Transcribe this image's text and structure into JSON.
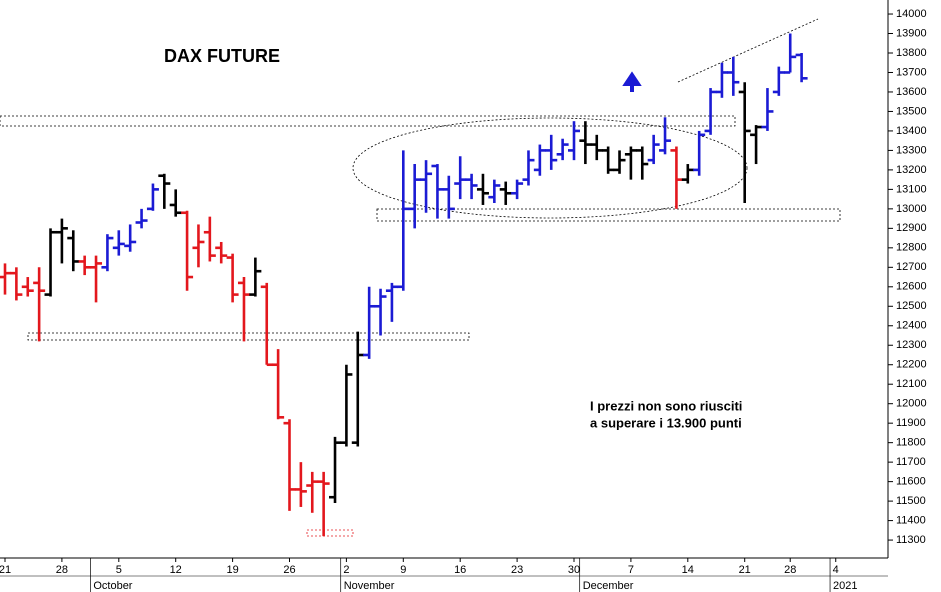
{
  "chart_data": {
    "type": "ohlc",
    "title": "DAX FUTURE",
    "annotation": [
      "I prezzi non sono riusciti",
      "a superare i 13.900 punti"
    ],
    "categories": [
      "21",
      null,
      null,
      null,
      null,
      "28",
      null,
      null,
      null,
      null,
      "5",
      null,
      null,
      null,
      null,
      "12",
      null,
      null,
      null,
      null,
      "19",
      null,
      null,
      null,
      null,
      "26",
      null,
      null,
      null,
      null,
      "2",
      null,
      null,
      null,
      null,
      "9",
      null,
      null,
      null,
      null,
      "16",
      null,
      null,
      null,
      null,
      "23",
      null,
      null,
      null,
      null,
      "30",
      null,
      null,
      null,
      null,
      "7",
      null,
      null,
      null,
      null,
      "14",
      null,
      null,
      null,
      null,
      "21",
      null,
      null,
      null,
      "28",
      null,
      null,
      null,
      "4"
    ],
    "months": [
      {
        "label": "October",
        "start": 8
      },
      {
        "label": "November",
        "start": 30
      },
      {
        "label": "December",
        "start": 51
      },
      {
        "label": "2021",
        "start": 73
      }
    ],
    "open": [
      12650,
      12670,
      12600,
      12620,
      12560,
      12880,
      12850,
      12730,
      12700,
      12700,
      12800,
      12810,
      12930,
      13000,
      13170,
      13020,
      12980,
      12800,
      12880,
      12800,
      12750,
      12620,
      12560,
      12600,
      12200,
      11900,
      11560,
      11580,
      11600,
      11520,
      11800,
      11800,
      12250,
      12500,
      12580,
      12600,
      13000,
      13150,
      13220,
      13100,
      13130,
      13150,
      13100,
      13060,
      13100,
      13080,
      13150,
      13200,
      13300,
      13280,
      13300,
      13350,
      13330,
      13300,
      13200,
      13280,
      13300,
      13250,
      13300,
      13300,
      13150,
      13200,
      13400,
      13600,
      13700,
      13600,
      13380,
      13420,
      13600,
      13700,
      13790,
      null,
      null,
      null
    ],
    "high": [
      12720,
      12700,
      12650,
      12700,
      12900,
      12950,
      12890,
      12760,
      12760,
      12870,
      12890,
      12920,
      13000,
      13130,
      13180,
      13100,
      12990,
      12920,
      12960,
      12830,
      12770,
      12650,
      12750,
      12620,
      12280,
      11920,
      11700,
      11650,
      11650,
      11830,
      12200,
      12370,
      12600,
      12590,
      12620,
      13300,
      13230,
      13250,
      13230,
      13170,
      13270,
      13180,
      13180,
      13150,
      13140,
      13150,
      13300,
      13330,
      13380,
      13360,
      13450,
      13450,
      13380,
      13320,
      13300,
      13320,
      13320,
      13380,
      13470,
      13320,
      13230,
      13400,
      13620,
      13750,
      13780,
      13650,
      13430,
      13620,
      13730,
      13900,
      13800,
      null,
      null,
      null
    ],
    "low": [
      12560,
      12530,
      12550,
      12320,
      12550,
      12720,
      12680,
      12660,
      12520,
      12680,
      12760,
      12780,
      12900,
      12990,
      13000,
      12960,
      12580,
      12700,
      12730,
      12720,
      12520,
      12320,
      12550,
      12200,
      11920,
      11450,
      11470,
      11440,
      11320,
      11490,
      11780,
      11780,
      12230,
      12350,
      12420,
      12580,
      12900,
      12980,
      12950,
      12950,
      13050,
      13050,
      13020,
      13030,
      13020,
      13050,
      13120,
      13170,
      13200,
      13250,
      13250,
      13230,
      13250,
      13180,
      13180,
      13150,
      13150,
      13230,
      13280,
      13000,
      13130,
      13170,
      13380,
      13570,
      13580,
      13030,
      13230,
      13400,
      13580,
      13700,
      13650,
      null,
      null,
      null
    ],
    "close": [
      12670,
      12560,
      12580,
      12580,
      12880,
      12900,
      12730,
      12700,
      12720,
      12850,
      12820,
      12830,
      12940,
      13100,
      13130,
      12980,
      12650,
      12830,
      12760,
      12760,
      12560,
      12560,
      12680,
      12200,
      11930,
      11560,
      11550,
      11600,
      11590,
      11800,
      12150,
      12250,
      12500,
      12550,
      12600,
      13000,
      13150,
      13180,
      13100,
      13000,
      13150,
      13120,
      13080,
      13120,
      13080,
      13130,
      13250,
      13300,
      13250,
      13330,
      13400,
      13330,
      13300,
      13200,
      13250,
      13300,
      13230,
      13330,
      13350,
      13150,
      13200,
      13380,
      13600,
      13700,
      13650,
      13400,
      13420,
      13500,
      13700,
      13780,
      13670,
      null,
      null,
      null
    ],
    "bar_colors": [
      "#e3171d",
      "#e3171d",
      "#e3171d",
      "#e3171d",
      "#000000",
      "#000000",
      "#000000",
      "#e3171d",
      "#e3171d",
      "#1b1bd4",
      "#1b1bd4",
      "#1b1bd4",
      "#1b1bd4",
      "#1b1bd4",
      "#000000",
      "#000000",
      "#e3171d",
      "#e3171d",
      "#e3171d",
      "#e3171d",
      "#e3171d",
      "#e3171d",
      "#000000",
      "#e3171d",
      "#e3171d",
      "#e3171d",
      "#e3171d",
      "#e3171d",
      "#e3171d",
      "#000000",
      "#000000",
      "#000000",
      "#1b1bd4",
      "#1b1bd4",
      "#1b1bd4",
      "#1b1bd4",
      "#1b1bd4",
      "#1b1bd4",
      "#1b1bd4",
      "#1b1bd4",
      "#1b1bd4",
      "#1b1bd4",
      "#000000",
      "#1b1bd4",
      "#000000",
      "#1b1bd4",
      "#1b1bd4",
      "#1b1bd4",
      "#1b1bd4",
      "#1b1bd4",
      "#1b1bd4",
      "#000000",
      "#000000",
      "#000000",
      "#000000",
      "#000000",
      "#000000",
      "#1b1bd4",
      "#1b1bd4",
      "#e3171d",
      "#000000",
      "#1b1bd4",
      "#1b1bd4",
      "#1b1bd4",
      "#1b1bd4",
      "#000000",
      "#000000",
      "#1b1bd4",
      "#1b1bd4",
      "#1b1bd4",
      "#1b1bd4",
      null,
      null,
      null
    ],
    "ylim": [
      11208,
      14072
    ],
    "yticks": [
      11300,
      11400,
      11500,
      11600,
      11700,
      11800,
      11900,
      12000,
      12100,
      12200,
      12300,
      12400,
      12500,
      12600,
      12700,
      12800,
      12900,
      13000,
      13100,
      13200,
      13300,
      13400,
      13500,
      13600,
      13700,
      13800,
      13900,
      14000
    ]
  }
}
